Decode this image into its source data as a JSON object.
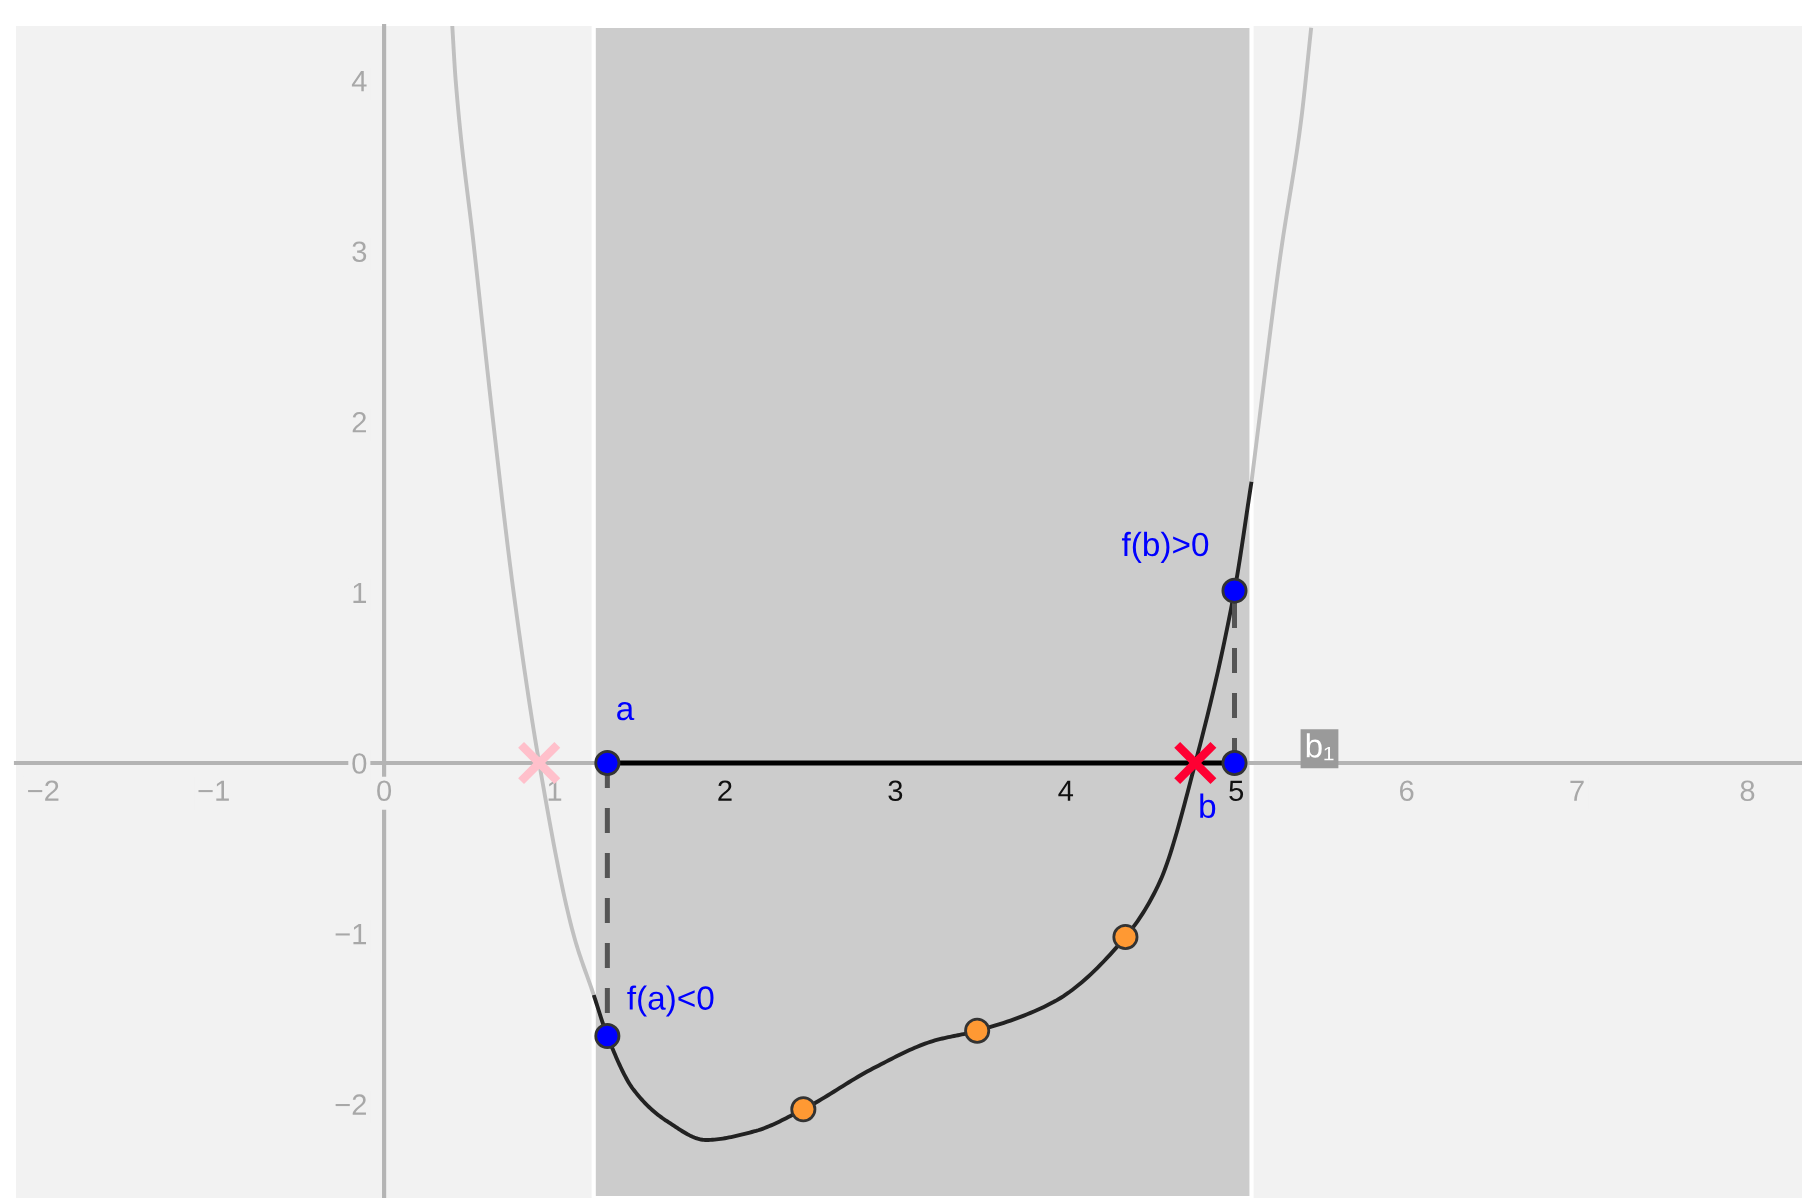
{
  "chart_data": {
    "type": "line",
    "xlim": [
      -2.16,
      8.32
    ],
    "ylim": [
      -2.55,
      4.32
    ],
    "xticks": [
      {
        "value": -2,
        "label": "−2"
      },
      {
        "value": -1,
        "label": "−1"
      },
      0,
      1,
      2,
      3,
      4,
      5,
      6,
      7,
      8
    ],
    "yticks": [
      {
        "value": -2,
        "label": "−2"
      },
      {
        "value": -1,
        "label": "−1"
      },
      0,
      1,
      2,
      3,
      4
    ],
    "bands": [
      {
        "axis": "x",
        "from": 1.23,
        "to": 5.09,
        "color": "#cccccc"
      }
    ],
    "series": [
      {
        "color": "#c0c0c0",
        "x": [
          0.4,
          0.42,
          0.53,
          0.64,
          0.76,
          0.91,
          1.11,
          1.23
        ],
        "values": [
          4.32,
          4.0,
          3.0,
          2.0,
          1.0,
          0.0,
          -1.0,
          -1.36
        ]
      },
      {
        "color": "#222222",
        "x": [
          1.23,
          1.31,
          1.46,
          1.66,
          1.89,
          2.17,
          2.46,
          2.87,
          3.22,
          3.48,
          3.93,
          4.35,
          4.55,
          4.76,
          4.99,
          5.09
        ],
        "values": [
          -1.36,
          -1.6,
          -1.91,
          -2.1,
          -2.21,
          -2.16,
          -2.03,
          -1.79,
          -1.63,
          -1.57,
          -1.4,
          -1.02,
          -0.7,
          0.0,
          1.01,
          1.65
        ]
      },
      {
        "color": "#c0c0c0",
        "x": [
          5.09,
          5.26,
          5.38,
          5.44
        ],
        "values": [
          1.65,
          2.98,
          3.76,
          4.31
        ]
      },
      {
        "color": "#000000",
        "x": [
          1.31,
          4.99
        ],
        "values": [
          0,
          0
        ]
      },
      {
        "color": "#555555",
        "line_style": "dashed",
        "x": [
          1.31,
          1.31
        ],
        "values": [
          0,
          -1.6
        ]
      },
      {
        "color": "#555555",
        "line_style": "dashed",
        "x": [
          4.99,
          4.99
        ],
        "values": [
          0,
          1.01
        ]
      },
      {
        "type": "scatter",
        "marker": "cross",
        "color": "#ffc0cb",
        "x": [
          0.91
        ],
        "values": [
          0
        ]
      },
      {
        "type": "scatter",
        "marker": "circle",
        "color": "#ff9933",
        "x": [
          2.46,
          3.48,
          4.35
        ],
        "values": [
          -2.03,
          -1.57,
          -1.02
        ]
      },
      {
        "type": "scatter",
        "marker": "circle",
        "color": "#0000ff",
        "x": [
          1.31,
          1.31,
          4.99,
          4.99
        ],
        "values": [
          0,
          -1.6,
          0,
          1.01
        ]
      },
      {
        "type": "scatter",
        "marker": "cross",
        "color": "#ff0033",
        "x": [
          4.76
        ],
        "values": [
          0
        ]
      }
    ],
    "annotations": [
      {
        "text": "a",
        "x": 1.31,
        "y": 0
      },
      {
        "text": "b",
        "x": 4.76,
        "y": 0
      },
      {
        "text": "f(a)<0",
        "x": 1.31,
        "y": -1.6
      },
      {
        "text": "f(b)>0",
        "x": 4.99,
        "y": 1.01
      },
      "b₁"
    ]
  }
}
